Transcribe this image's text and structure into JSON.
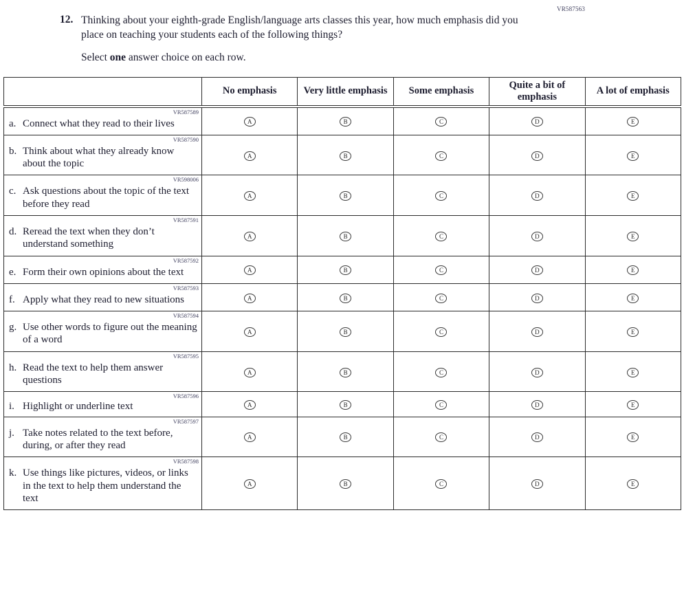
{
  "page": {
    "form_code": "VR587563",
    "question_number": "12.",
    "question_text": "Thinking about your eighth-grade English/language arts classes this year, how much emphasis did you place on teaching your students each of the following things?",
    "instruction_prefix": "Select ",
    "instruction_bold": "one",
    "instruction_suffix": " answer choice on each row."
  },
  "table": {
    "columns": [
      "No emphasis",
      "Very little emphasis",
      "Some emphasis",
      "Quite a bit of emphasis",
      "A lot of emphasis"
    ],
    "options": [
      "A",
      "B",
      "C",
      "D",
      "E"
    ],
    "rows": [
      {
        "letter": "a.",
        "label": "Connect what they read to their lives",
        "code": "VR587589"
      },
      {
        "letter": "b.",
        "label": "Think about what they already know about the topic",
        "code": "VR587590"
      },
      {
        "letter": "c.",
        "label": "Ask questions about the topic of the text before they read",
        "code": "VR598006"
      },
      {
        "letter": "d.",
        "label": "Reread the text when they don’t understand something",
        "code": "VR587591"
      },
      {
        "letter": "e.",
        "label": "Form their own opinions about the text",
        "code": "VR587592"
      },
      {
        "letter": "f.",
        "label": "Apply what they read to new situations",
        "code": "VR587593"
      },
      {
        "letter": "g.",
        "label": "Use other words to figure out the meaning of a word",
        "code": "VR587594"
      },
      {
        "letter": "h.",
        "label": "Read the text to help them answer questions",
        "code": "VR587595"
      },
      {
        "letter": "i.",
        "label": "Highlight or underline text",
        "code": "VR587596"
      },
      {
        "letter": "j.",
        "label": "Take notes related to the text before, during, or after they read",
        "code": "VR587597"
      },
      {
        "letter": "k.",
        "label": "Use things like pictures, videos, or links in the text to help them understand the text",
        "code": "VR587598"
      }
    ]
  },
  "colors": {
    "text": "#1c1c2e",
    "code_text": "#3d3d5c",
    "border": "#2b2b2b",
    "background": "#ffffff"
  }
}
